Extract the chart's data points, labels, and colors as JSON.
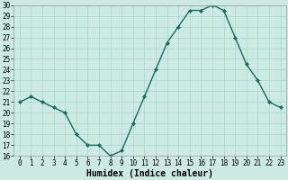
{
  "x": [
    0,
    1,
    2,
    3,
    4,
    5,
    6,
    7,
    8,
    9,
    10,
    11,
    12,
    13,
    14,
    15,
    16,
    17,
    18,
    19,
    20,
    21,
    22,
    23
  ],
  "y": [
    21,
    21.5,
    21,
    20.5,
    20,
    18,
    17,
    17,
    16,
    16.5,
    19,
    21.5,
    24,
    26.5,
    28,
    29.5,
    29.5,
    30,
    29.5,
    27,
    24.5,
    23,
    21,
    20.5
  ],
  "line_color": "#1a6b5a",
  "marker": "D",
  "markersize": 2,
  "linewidth": 1.0,
  "xlabel": "Humidex (Indice chaleur)",
  "ylim": [
    16,
    30
  ],
  "yticks": [
    16,
    17,
    18,
    19,
    20,
    21,
    22,
    23,
    24,
    25,
    26,
    27,
    28,
    29,
    30
  ],
  "xticks": [
    0,
    1,
    2,
    3,
    4,
    5,
    6,
    7,
    8,
    9,
    10,
    11,
    12,
    13,
    14,
    15,
    16,
    17,
    18,
    19,
    20,
    21,
    22,
    23
  ],
  "bg_color": "#cce9e4",
  "grid_color": "#b0d8d2",
  "xlabel_fontsize": 7,
  "tick_fontsize": 5.5
}
